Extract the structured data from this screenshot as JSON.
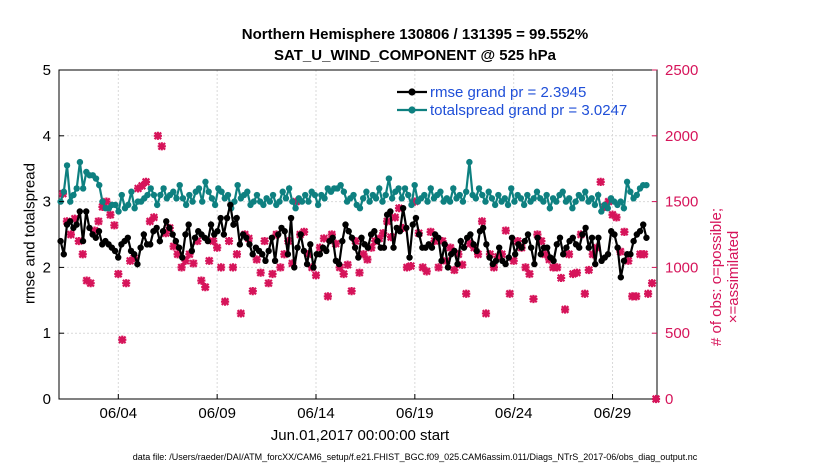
{
  "chart_data": {
    "type": "line",
    "title": "Northern Hemisphere 130806 / 131395 = 99.552%",
    "subtitle": "SAT_U_WIND_COMPONENT @ 525 hPa",
    "xlabel": "Jun.01,2017 00:00:00 start",
    "ylabel": "rmse and totalspread",
    "ylabel_right": "# of obs: o=possible; ×=assimilated",
    "footer": "data file: /Users/raeder/DAI/ATM_forcXX/CAM6_setup/f.e21.FHIST_BGC.f09_025.CAM6assim.011/Diags_NTrS_2017-06/obs_diag_output.nc",
    "x_ticks": [
      "06/04",
      "06/09",
      "06/14",
      "06/19",
      "06/24",
      "06/29"
    ],
    "y_ticks": [
      "0",
      "1",
      "2",
      "3",
      "4",
      "5"
    ],
    "y2_ticks": [
      "0",
      "500",
      "1000",
      "1500",
      "2000",
      "2500"
    ],
    "ylim": [
      0,
      5
    ],
    "y2lim": [
      0,
      2500
    ],
    "xlim": [
      1.0,
      31.25
    ],
    "grid": true,
    "legend_position": "top-right",
    "colors": {
      "rmse": "#000000",
      "totalspread": "#0e8080",
      "obs": "#d6145a",
      "text_blue": "#1f4fd8"
    },
    "series": [
      {
        "name": "rmse grand pr = 2.3945",
        "color": "#000000",
        "values": [
          2.4,
          2.2,
          2.65,
          2.7,
          2.6,
          2.65,
          2.85,
          2.4,
          2.85,
          2.6,
          2.5,
          2.45,
          2.55,
          2.35,
          2.4,
          2.35,
          2.3,
          2.25,
          2.15,
          2.35,
          2.4,
          2.45,
          2.25,
          2.2,
          2.05,
          2.3,
          2.5,
          2.35,
          2.35,
          2.55,
          2.6,
          2.4,
          2.55,
          2.7,
          2.6,
          2.5,
          2.4,
          2.3,
          2.15,
          2.5,
          2.65,
          2.25,
          2.45,
          2.55,
          2.5,
          2.45,
          2.4,
          2.65,
          2.5,
          2.55,
          2.75,
          2.5,
          2.75,
          2.95,
          2.65,
          2.75,
          2.35,
          2.5,
          2.45,
          2.35,
          2.2,
          2.3,
          2.25,
          2.2,
          2.1,
          2.25,
          2.45,
          2.1,
          2.5,
          2.6,
          2.55,
          2.2,
          2.75,
          2.0,
          2.3,
          2.5,
          2.25,
          2.05,
          2.35,
          2.0,
          2.2,
          2.2,
          2.3,
          2.25,
          2.4,
          2.45,
          2.1,
          2.05,
          2.4,
          2.65,
          2.55,
          2.45,
          2.3,
          2.15,
          2.45,
          2.35,
          2.3,
          2.5,
          2.55,
          2.4,
          2.3,
          2.3,
          2.8,
          2.85,
          2.3,
          2.6,
          2.55,
          2.9,
          2.6,
          2.15,
          2.65,
          2.75,
          2.5,
          2.3,
          2.3,
          2.35,
          2.3,
          2.5,
          2.45,
          2.1,
          2.35,
          2.0,
          2.2,
          2.25,
          2.05,
          2.4,
          2.3,
          2.45,
          2.5,
          2.35,
          2.25,
          2.55,
          2.6,
          2.35,
          2.15,
          2.05,
          2.1,
          2.3,
          2.1,
          2.05,
          2.15,
          2.45,
          2.2,
          2.35,
          2.3,
          2.4,
          2.5,
          2.3,
          2.05,
          2.45,
          2.2,
          2.3,
          2.3,
          2.15,
          2.1,
          2.35,
          2.45,
          2.2,
          2.3,
          2.4,
          2.45,
          2.35,
          2.3,
          2.5,
          2.6,
          2.3,
          2.45,
          2.05,
          2.45,
          2.1,
          2.15,
          2.2,
          2.55,
          2.5,
          2.3,
          1.85,
          2.1,
          2.2,
          2.2,
          2.4,
          2.5,
          2.55,
          2.65,
          2.45
        ]
      },
      {
        "name": "totalspread grand pr = 3.0247",
        "color": "#0e8080",
        "values": [
          3.0,
          3.15,
          3.55,
          3.0,
          3.1,
          3.2,
          3.6,
          3.2,
          3.45,
          3.4,
          3.4,
          3.35,
          3.25,
          3.0,
          2.9,
          2.9,
          2.95,
          2.95,
          2.85,
          3.1,
          2.9,
          2.95,
          3.15,
          2.9,
          3.0,
          3.0,
          3.05,
          3.1,
          3.2,
          3.1,
          2.95,
          3.1,
          3.2,
          3.05,
          3.1,
          3.15,
          3.05,
          3.25,
          3.05,
          2.95,
          3.1,
          3.0,
          3.15,
          3.2,
          3.0,
          3.3,
          3.15,
          3.05,
          2.95,
          3.2,
          3.15,
          3.05,
          3.1,
          2.9,
          3.0,
          3.25,
          3.05,
          3.1,
          3.15,
          2.95,
          3.0,
          3.1,
          3.0,
          2.95,
          3.05,
          3.0,
          3.1,
          2.95,
          3.0,
          3.15,
          3.05,
          3.2,
          3.0,
          2.9,
          3.05,
          3.0,
          3.1,
          3.0,
          3.15,
          3.1,
          2.95,
          3.1,
          3.05,
          3.2,
          3.15,
          3.2,
          3.2,
          3.25,
          3.15,
          3.0,
          3.05,
          3.1,
          2.95,
          2.9,
          3.05,
          3.15,
          3.0,
          3.1,
          3.05,
          3.2,
          3.0,
          3.1,
          3.35,
          3.05,
          3.15,
          3.2,
          3.05,
          3.2,
          3.1,
          2.95,
          3.25,
          3.0,
          3.05,
          3.1,
          3.0,
          3.2,
          3.05,
          3.1,
          3.15,
          3.0,
          3.05,
          3.0,
          3.2,
          3.05,
          3.1,
          3.0,
          3.15,
          3.6,
          3.1,
          3.05,
          3.2,
          3.1,
          3.0,
          3.15,
          3.05,
          2.95,
          3.1,
          3.0,
          3.05,
          2.95,
          3.2,
          3.0,
          3.1,
          3.05,
          2.95,
          3.1,
          3.0,
          3.05,
          3.15,
          3.05,
          3.0,
          3.1,
          2.9,
          3.05,
          3.0,
          3.1,
          3.15,
          3.0,
          3.05,
          2.9,
          3.0,
          3.1,
          3.05,
          3.15,
          3.0,
          3.05,
          2.95,
          3.1,
          2.85,
          2.95,
          2.9,
          3.05,
          3.0,
          2.95,
          3.0,
          2.9,
          3.3,
          3.15,
          3.05,
          3.1,
          3.2,
          3.25,
          3.25
        ]
      }
    ],
    "obs_assimilated": {
      "name": "× assimilated",
      "color": "#d6145a",
      "points": [
        [
          1.2,
          1560
        ],
        [
          1.4,
          1350
        ],
        [
          1.6,
          1250
        ],
        [
          1.8,
          1370
        ],
        [
          2.0,
          1200
        ],
        [
          2.2,
          1100
        ],
        [
          2.4,
          900
        ],
        [
          2.6,
          880
        ],
        [
          2.8,
          1280
        ],
        [
          3.0,
          1350
        ],
        [
          3.2,
          1460
        ],
        [
          3.4,
          1500
        ],
        [
          3.6,
          1400
        ],
        [
          3.8,
          1320
        ],
        [
          4.0,
          950
        ],
        [
          4.2,
          450
        ],
        [
          4.4,
          880
        ],
        [
          4.6,
          1050
        ],
        [
          4.8,
          1070
        ],
        [
          5.0,
          1600
        ],
        [
          5.2,
          1620
        ],
        [
          5.4,
          1650
        ],
        [
          5.6,
          1350
        ],
        [
          5.8,
          1380
        ],
        [
          6.0,
          2000
        ],
        [
          6.2,
          1920
        ],
        [
          6.4,
          1260
        ],
        [
          6.6,
          1300
        ],
        [
          6.8,
          1160
        ],
        [
          7.0,
          1100
        ],
        [
          7.2,
          1000
        ],
        [
          7.4,
          1050
        ],
        [
          7.6,
          1100
        ],
        [
          7.8,
          1030
        ],
        [
          8.0,
          1200
        ],
        [
          8.2,
          900
        ],
        [
          8.4,
          850
        ],
        [
          8.6,
          1050
        ],
        [
          8.8,
          1200
        ],
        [
          9.0,
          1150
        ],
        [
          9.2,
          1000
        ],
        [
          9.4,
          740
        ],
        [
          9.6,
          1200
        ],
        [
          9.8,
          1000
        ],
        [
          10.0,
          1100
        ],
        [
          10.2,
          650
        ],
        [
          10.4,
          1250
        ],
        [
          10.6,
          1220
        ],
        [
          10.8,
          820
        ],
        [
          11.0,
          1060
        ],
        [
          11.2,
          960
        ],
        [
          11.4,
          1200
        ],
        [
          11.6,
          880
        ],
        [
          11.8,
          950
        ],
        [
          12.0,
          1250
        ],
        [
          12.2,
          1000
        ],
        [
          12.4,
          1100
        ],
        [
          12.6,
          1200
        ],
        [
          12.8,
          1030
        ],
        [
          13.0,
          1500
        ],
        [
          13.2,
          1250
        ],
        [
          13.4,
          1270
        ],
        [
          13.6,
          1100
        ],
        [
          13.8,
          1000
        ],
        [
          14.0,
          940
        ],
        [
          14.2,
          1150
        ],
        [
          14.4,
          1220
        ],
        [
          14.6,
          780
        ],
        [
          14.8,
          1250
        ],
        [
          15.0,
          1180
        ],
        [
          15.2,
          1000
        ],
        [
          15.4,
          950
        ],
        [
          15.6,
          1020
        ],
        [
          15.8,
          820
        ],
        [
          16.0,
          1200
        ],
        [
          16.2,
          960
        ],
        [
          16.4,
          1100
        ],
        [
          16.6,
          1060
        ],
        [
          16.8,
          1150
        ],
        [
          17.0,
          1200
        ],
        [
          17.2,
          1220
        ],
        [
          17.4,
          1260
        ],
        [
          17.6,
          1350
        ],
        [
          17.8,
          1230
        ],
        [
          18.0,
          1380
        ],
        [
          18.2,
          1450
        ],
        [
          18.4,
          1300
        ],
        [
          18.6,
          1000
        ],
        [
          18.8,
          1010
        ],
        [
          19.0,
          1500
        ],
        [
          19.2,
          1260
        ],
        [
          19.4,
          1000
        ],
        [
          19.6,
          970
        ],
        [
          19.8,
          1270
        ],
        [
          20.0,
          1200
        ],
        [
          20.2,
          1000
        ],
        [
          20.4,
          1200
        ],
        [
          20.6,
          1050
        ],
        [
          20.8,
          1150
        ],
        [
          21.0,
          980
        ],
        [
          21.2,
          1100
        ],
        [
          21.4,
          1020
        ],
        [
          21.6,
          800
        ],
        [
          21.8,
          1180
        ],
        [
          22.0,
          1150
        ],
        [
          22.2,
          1100
        ],
        [
          22.4,
          1350
        ],
        [
          22.6,
          650
        ],
        [
          22.8,
          1100
        ],
        [
          23.0,
          1000
        ],
        [
          23.2,
          1080
        ],
        [
          23.4,
          1100
        ],
        [
          23.6,
          1280
        ],
        [
          23.8,
          800
        ],
        [
          24.0,
          1050
        ],
        [
          24.2,
          1200
        ],
        [
          24.4,
          1150
        ],
        [
          24.6,
          1000
        ],
        [
          24.8,
          950
        ],
        [
          25.0,
          760
        ],
        [
          25.2,
          1250
        ],
        [
          25.4,
          1200
        ],
        [
          25.6,
          1100
        ],
        [
          25.8,
          1060
        ],
        [
          26.0,
          1000
        ],
        [
          26.2,
          1000
        ],
        [
          26.4,
          920
        ],
        [
          26.6,
          680
        ],
        [
          26.8,
          1100
        ],
        [
          27.0,
          950
        ],
        [
          27.2,
          960
        ],
        [
          27.4,
          1250
        ],
        [
          27.6,
          800
        ],
        [
          27.8,
          980
        ],
        [
          28.0,
          1100
        ],
        [
          28.2,
          1150
        ],
        [
          28.4,
          1650
        ],
        [
          28.6,
          1460
        ],
        [
          28.8,
          1500
        ],
        [
          29.0,
          1400
        ],
        [
          29.2,
          1380
        ],
        [
          29.4,
          1120
        ],
        [
          29.6,
          1270
        ],
        [
          29.8,
          1050
        ],
        [
          30.0,
          780
        ],
        [
          30.2,
          780
        ],
        [
          30.4,
          1100
        ],
        [
          30.6,
          1100
        ],
        [
          30.8,
          800
        ],
        [
          31.0,
          880
        ],
        [
          31.2,
          0
        ]
      ]
    }
  }
}
